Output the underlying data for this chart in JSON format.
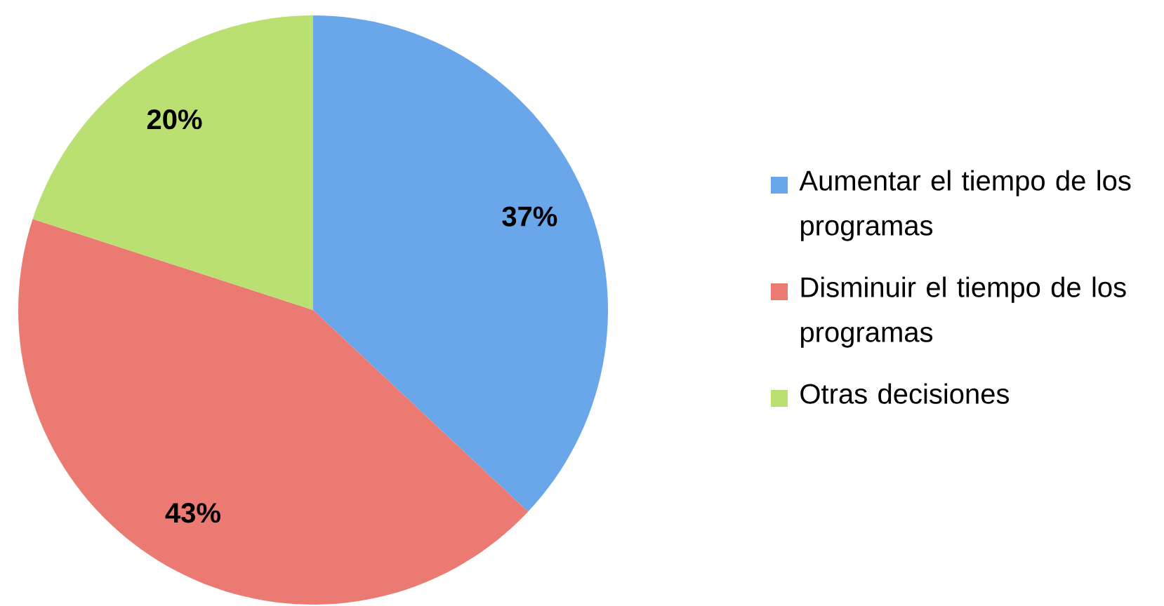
{
  "chart_data": {
    "type": "pie",
    "categories": [
      "Aumentar el tiempo de los programas",
      "Disminuir el tiempo de los programas",
      "Otras decisiones"
    ],
    "values": [
      37,
      43,
      20
    ],
    "value_labels": [
      "37%",
      "43%",
      "20%"
    ],
    "colors": [
      "#6aa6ea",
      "#eb7a72",
      "#b9e070"
    ],
    "legend": "right"
  }
}
